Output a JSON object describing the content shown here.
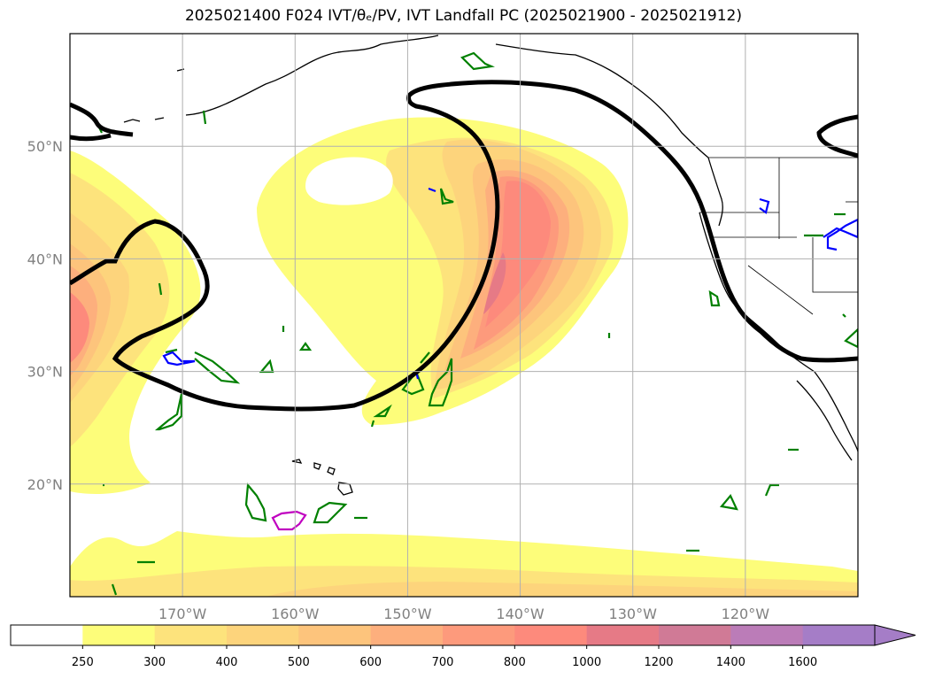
{
  "title": "2025021400 F024 IVT/θₑ/PV, IVT Landfall PC (2025021900 - 2025021912)",
  "chart_data": {
    "type": "heatmap",
    "title": "2025021400 F024 IVT/θₑ/PV, IVT Landfall PC (2025021900 - 2025021912)",
    "xlabel": "",
    "ylabel": "",
    "xlim": [
      180,
      110
    ],
    "ylim": [
      10,
      60
    ],
    "x_ticks": [
      {
        "value": 170,
        "label": "170°W"
      },
      {
        "value": 160,
        "label": "160°W"
      },
      {
        "value": 150,
        "label": "150°W"
      },
      {
        "value": 140,
        "label": "140°W"
      },
      {
        "value": 130,
        "label": "130°W"
      },
      {
        "value": 120,
        "label": "120°W"
      }
    ],
    "y_ticks": [
      {
        "value": 20,
        "label": "20°N"
      },
      {
        "value": 30,
        "label": "30°N"
      },
      {
        "value": 40,
        "label": "40°N"
      },
      {
        "value": 50,
        "label": "50°N"
      }
    ],
    "grid": true,
    "colorbar": {
      "levels": [
        250,
        300,
        400,
        500,
        600,
        700,
        800,
        1000,
        1200,
        1400,
        1600
      ],
      "labels": [
        "250",
        "300",
        "400",
        "500",
        "600",
        "700",
        "800",
        "1000",
        "1200",
        "1400",
        "1600"
      ],
      "colors": [
        "#ffffff",
        "#fdfd7a",
        "#fde37c",
        "#fdd47c",
        "#fdc47c",
        "#fdaf7d",
        "#fd9a7c",
        "#fd8a7c",
        "#e67a86",
        "#d07a96",
        "#bb7cb8",
        "#a57dc7"
      ],
      "extend": "max"
    }
  }
}
